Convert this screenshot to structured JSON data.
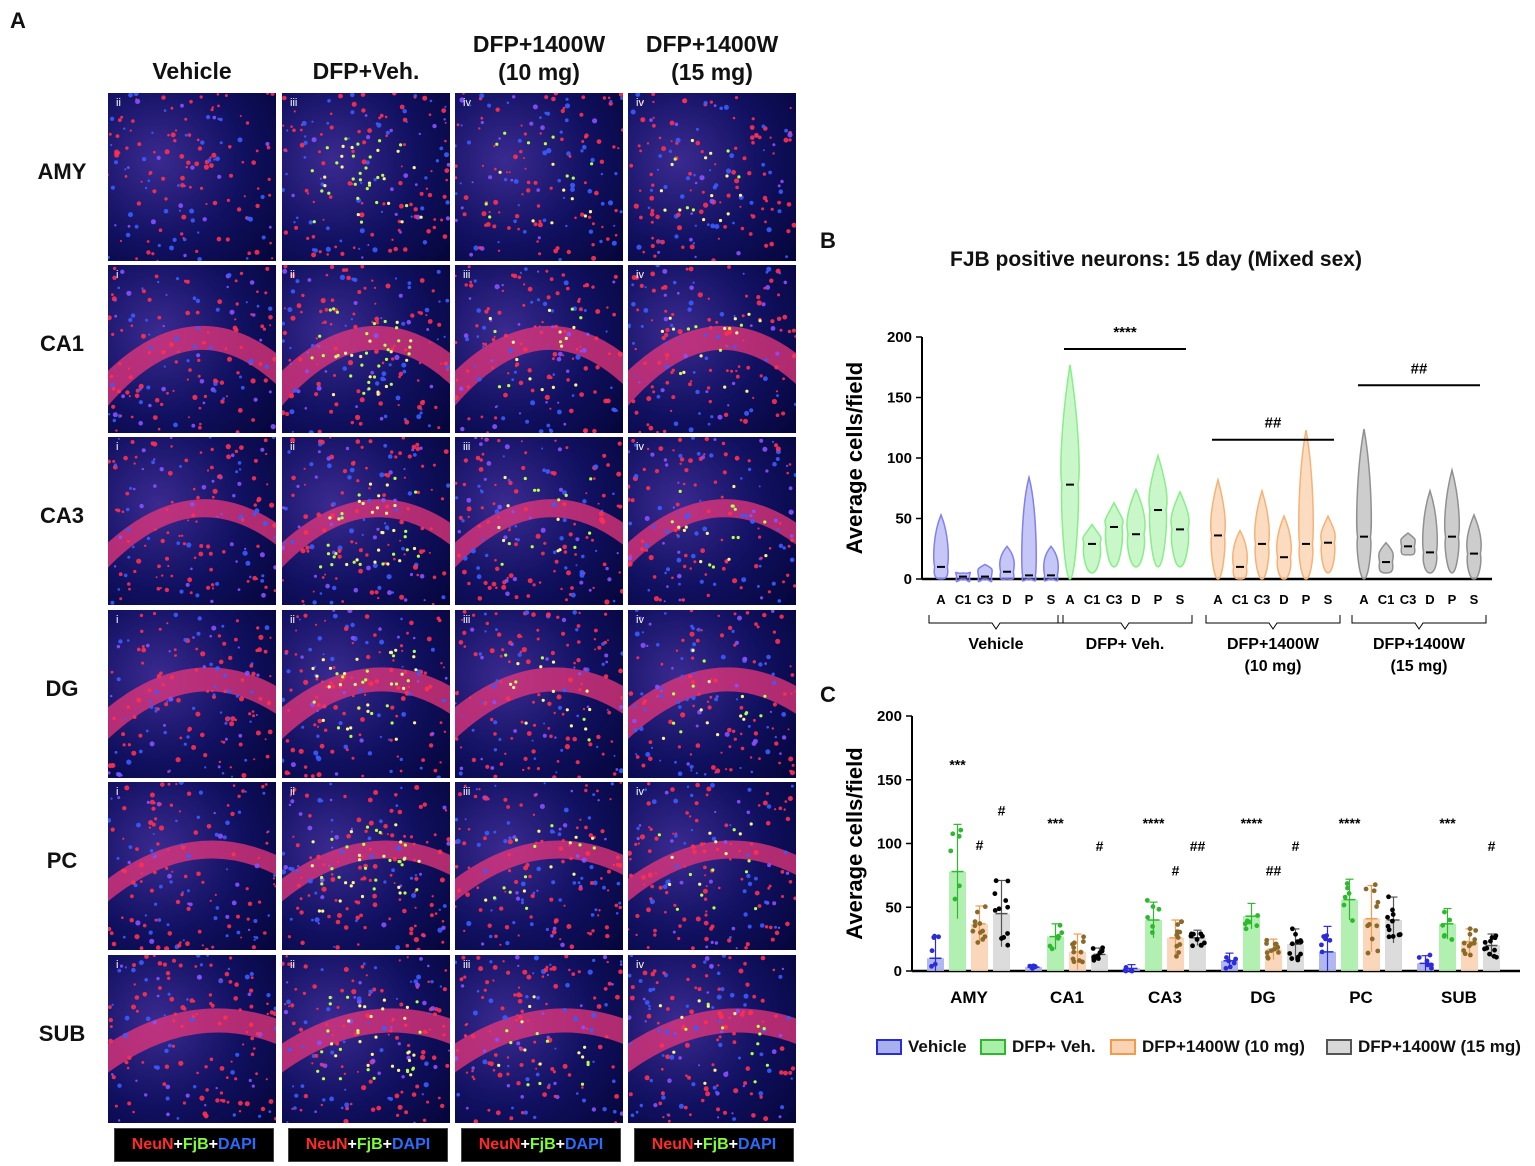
{
  "panel_a": {
    "letter": "A",
    "columns": [
      "Vehicle",
      "DFP+Veh.",
      "DFP+1400W\n(10 mg)",
      "DFP+1400W\n(15 mg)"
    ],
    "rows": [
      "AMY",
      "CA1",
      "CA3",
      "DG",
      "PC",
      "SUB"
    ],
    "tile_numerals": [
      [
        "ii",
        "iii",
        "iv",
        "iv"
      ],
      [
        "i",
        "ii",
        "iii",
        "iv"
      ],
      [
        "i",
        "ii",
        "iii",
        "iv"
      ],
      [
        "i",
        "ii",
        "iii",
        "iv"
      ],
      [
        "i",
        "ii",
        "iii",
        "iv"
      ],
      [
        "i",
        "ii",
        "iii",
        "iv"
      ]
    ],
    "stain_legend": {
      "neun": "NeuN",
      "plus1": "+",
      "fjb": "FjB",
      "plus2": "+",
      "dapi": "DAPI"
    },
    "colors": {
      "neun": "#ff2b2b",
      "fjb": "#7dff3c",
      "dapi": "#2a6bff"
    }
  },
  "chart_data": [
    {
      "panel": "B",
      "type": "violin",
      "title": "FJB positive neurons: 15 day (Mixed sex)",
      "ylabel": "Average cells/field",
      "ylim": [
        0,
        200
      ],
      "yticks": [
        0,
        50,
        100,
        150,
        200
      ],
      "groups": [
        {
          "name": "Vehicle",
          "color": "#8080ee",
          "regions": [
            "A",
            "C1",
            "C3",
            "D",
            "P",
            "S"
          ],
          "medians": [
            10,
            2,
            2,
            6,
            3,
            3
          ],
          "mins": [
            0,
            0,
            0,
            0,
            0,
            0
          ],
          "maxs": [
            53,
            5,
            12,
            27,
            84,
            27
          ]
        },
        {
          "name": "DFP+ Veh.",
          "color": "#88ee88",
          "regions": [
            "A",
            "C1",
            "C3",
            "D",
            "P",
            "S"
          ],
          "medians": [
            78,
            29,
            43,
            37,
            57,
            41
          ],
          "mins": [
            0,
            5,
            10,
            10,
            10,
            10
          ],
          "maxs": [
            177,
            45,
            63,
            74,
            102,
            72
          ]
        },
        {
          "name": "DFP+1400W (10 mg)",
          "color": "#f6b276",
          "regions": [
            "A",
            "C1",
            "C3",
            "D",
            "P",
            "S"
          ],
          "medians": [
            36,
            10,
            29,
            18,
            29,
            30
          ],
          "mins": [
            0,
            0,
            0,
            0,
            0,
            5
          ],
          "maxs": [
            82,
            40,
            73,
            52,
            123,
            52
          ]
        },
        {
          "name": "DFP+1400W (15 mg)",
          "color": "#909090",
          "regions": [
            "A",
            "C1",
            "C3",
            "D",
            "P",
            "S"
          ],
          "medians": [
            35,
            14,
            27,
            22,
            35,
            21
          ],
          "mins": [
            0,
            5,
            20,
            5,
            5,
            0
          ],
          "maxs": [
            124,
            30,
            38,
            73,
            90,
            53
          ]
        }
      ],
      "group_labels": [
        "Vehicle",
        "DFP+ Veh.",
        "DFP+1400W\n(10 mg)",
        "DFP+1400W\n(15 mg)"
      ],
      "annotations": [
        {
          "text": "****",
          "group": 1,
          "y": 205
        },
        {
          "text": "##",
          "group": 2,
          "y": 130
        },
        {
          "text": "##",
          "group": 3,
          "y": 175
        }
      ]
    },
    {
      "panel": "C",
      "type": "bar",
      "ylabel": "Average cells/field",
      "ylim": [
        0,
        200
      ],
      "yticks": [
        0,
        50,
        100,
        150,
        200
      ],
      "categories": [
        "AMY",
        "CA1",
        "CA3",
        "DG",
        "PC",
        "SUB"
      ],
      "series": [
        {
          "name": "Vehicle",
          "color": "#2b2bd9",
          "fill": "#a8b0ee",
          "values": [
            10,
            3,
            2,
            8,
            15,
            6
          ],
          "sd": [
            17,
            1,
            3,
            6,
            20,
            6
          ]
        },
        {
          "name": "DFP+ Veh.",
          "color": "#2fb82f",
          "fill": "#a9eea9",
          "values": [
            78,
            27,
            40,
            43,
            56,
            37
          ],
          "sd": [
            37,
            10,
            14,
            10,
            16,
            12
          ]
        },
        {
          "name": "DFP+1400W (10 mg)",
          "color": "#f59a4c",
          "fill": "#fad3b2",
          "values": [
            37,
            15,
            26,
            17,
            41,
            23
          ],
          "sd": [
            14,
            14,
            14,
            8,
            26,
            10
          ]
        },
        {
          "name": "DFP+1400W (15 mg)",
          "color": "#555555",
          "fill": "#d8d8d8",
          "values": [
            45,
            13,
            26,
            21,
            40,
            20
          ],
          "sd": [
            26,
            5,
            6,
            12,
            18,
            9
          ]
        }
      ],
      "annotations": [
        {
          "category": 0,
          "text": "***",
          "series": 1,
          "y": 158
        },
        {
          "category": 0,
          "text": "#",
          "series": 2,
          "y": 95
        },
        {
          "category": 0,
          "text": "#",
          "series": 3,
          "y": 122
        },
        {
          "category": 1,
          "text": "***",
          "series": 1,
          "y": 112
        },
        {
          "category": 1,
          "text": "#",
          "series": 3,
          "y": 94
        },
        {
          "category": 2,
          "text": "****",
          "series": 1,
          "y": 112
        },
        {
          "category": 2,
          "text": "#",
          "series": 2,
          "y": 75
        },
        {
          "category": 2,
          "text": "##",
          "series": 3,
          "y": 94
        },
        {
          "category": 3,
          "text": "****",
          "series": 1,
          "y": 112
        },
        {
          "category": 3,
          "text": "##",
          "series": 2,
          "y": 75
        },
        {
          "category": 3,
          "text": "#",
          "series": 3,
          "y": 94
        },
        {
          "category": 4,
          "text": "****",
          "series": 1,
          "y": 112
        },
        {
          "category": 5,
          "text": "***",
          "series": 1,
          "y": 112
        },
        {
          "category": 5,
          "text": "#",
          "series": 3,
          "y": 94
        }
      ]
    }
  ],
  "panel_b_letter": "B",
  "panel_c_letter": "C",
  "legend_c": [
    "Vehicle",
    "DFP+ Veh.",
    "DFP+1400W (10 mg)",
    "DFP+1400W (15 mg)"
  ]
}
